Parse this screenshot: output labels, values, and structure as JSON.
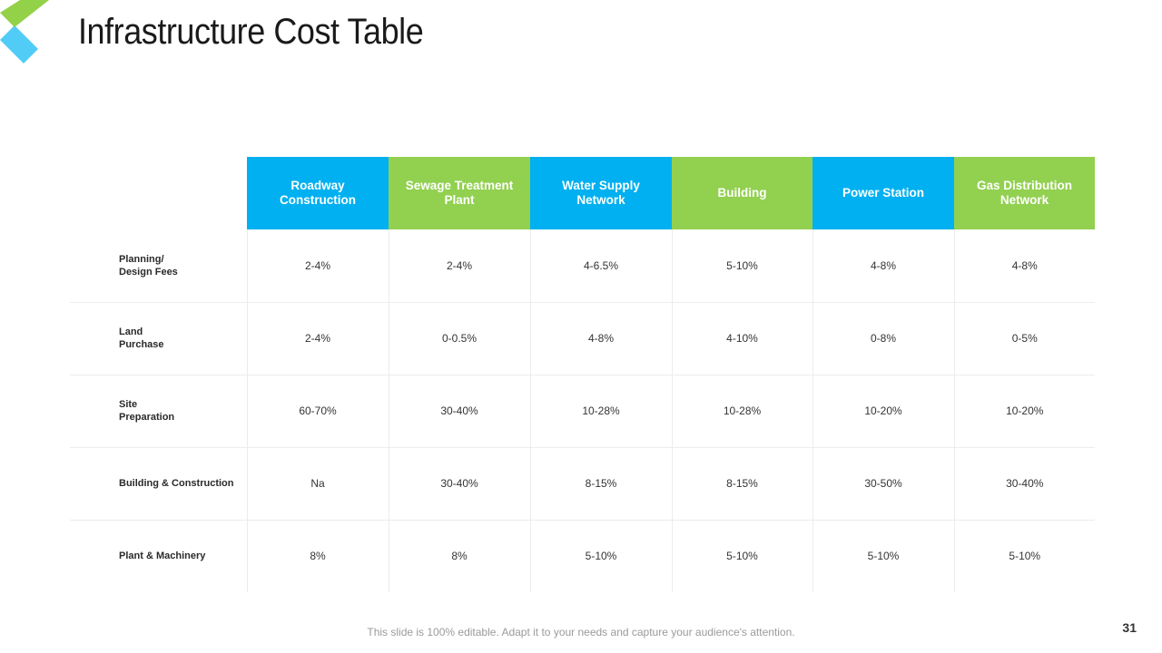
{
  "title": "Infrastructure Cost Table",
  "colors": {
    "blue": "#00b0f0",
    "green": "#92d050",
    "logo_green": "#8dcf3f",
    "logo_blue": "#33c3f5"
  },
  "logo": {
    "icon": "chevron-logo-icon"
  },
  "table": {
    "columns": [
      {
        "label": "Roadway Construction",
        "color": "#00b0f0"
      },
      {
        "label": "Sewage Treatment Plant",
        "color": "#92d050"
      },
      {
        "label": "Water Supply Network",
        "color": "#00b0f0"
      },
      {
        "label": "Building",
        "color": "#92d050"
      },
      {
        "label": "Power Station",
        "color": "#00b0f0"
      },
      {
        "label": "Gas Distribution Network",
        "color": "#92d050"
      }
    ],
    "rows": [
      {
        "label": "Planning/\nDesign Fees",
        "values": [
          "2-4%",
          "2-4%",
          "4-6.5%",
          "5-10%",
          "4-8%",
          "4-8%"
        ]
      },
      {
        "label": "Land\nPurchase",
        "values": [
          "2-4%",
          "0-0.5%",
          "4-8%",
          "4-10%",
          "0-8%",
          "0-5%"
        ]
      },
      {
        "label": "Site\nPreparation",
        "values": [
          "60-70%",
          "30-40%",
          "10-28%",
          "10-28%",
          "10-20%",
          "10-20%"
        ]
      },
      {
        "label": "Building & Construction",
        "values": [
          "Na",
          "30-40%",
          "8-15%",
          "8-15%",
          "30-50%",
          "30-40%"
        ]
      },
      {
        "label": "Plant & Machinery",
        "values": [
          "8%",
          "8%",
          "5-10%",
          "5-10%",
          "5-10%",
          "5-10%"
        ]
      }
    ]
  },
  "footer": {
    "note": "This slide is 100% editable. Adapt it to your needs and capture your audience's attention.",
    "page_number": "31"
  }
}
